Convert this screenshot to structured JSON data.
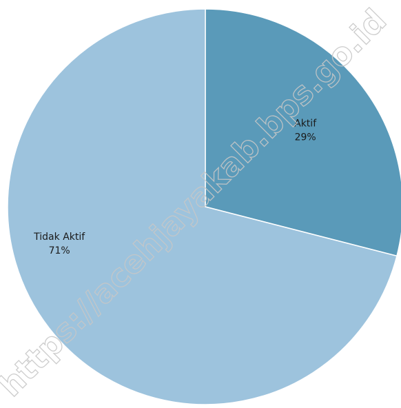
{
  "chart_data": {
    "type": "pie",
    "slices": [
      {
        "label": "Aktif",
        "percent_label": "29%",
        "value": 29,
        "color": "#5a9ab9"
      },
      {
        "label": "Tidak Aktif",
        "percent_label": "71%",
        "value": 71,
        "color": "#9dc3dd"
      }
    ],
    "start_angle_deg": 0,
    "direction": "clockwise",
    "slice_border_color": "#ffffff"
  },
  "watermark": {
    "text": "https://acehjayakab.bps.go.id"
  }
}
